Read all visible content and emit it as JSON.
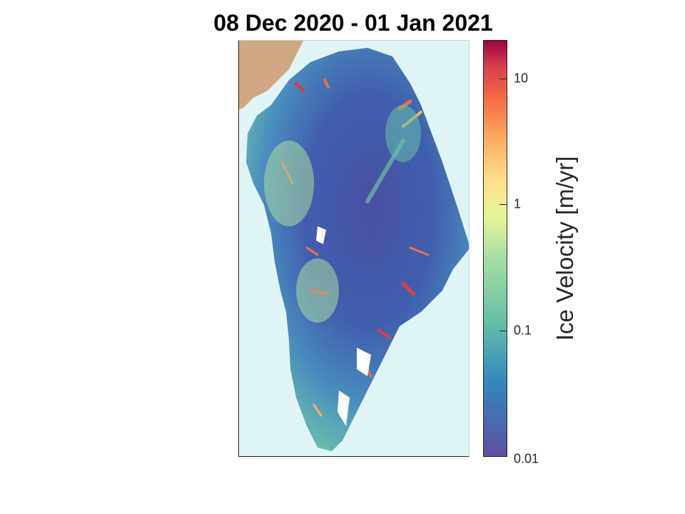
{
  "title": "08 Dec 2020 - 01 Jan 2021",
  "colors": {
    "ocean": "#dff5f6",
    "land": "#cfa882",
    "ice_low": "#5a4ea2",
    "ice_high": "#a50f3a"
  },
  "colorbar": {
    "label": "Ice Velocity [m/yr]",
    "scale": "log",
    "range": [
      0.01,
      20
    ],
    "ticks": [
      {
        "value": 10,
        "label": "10"
      },
      {
        "value": 1,
        "label": "1"
      },
      {
        "value": 0.1,
        "label": "0.1"
      },
      {
        "value": 0.01,
        "label": "0.01"
      }
    ]
  }
}
